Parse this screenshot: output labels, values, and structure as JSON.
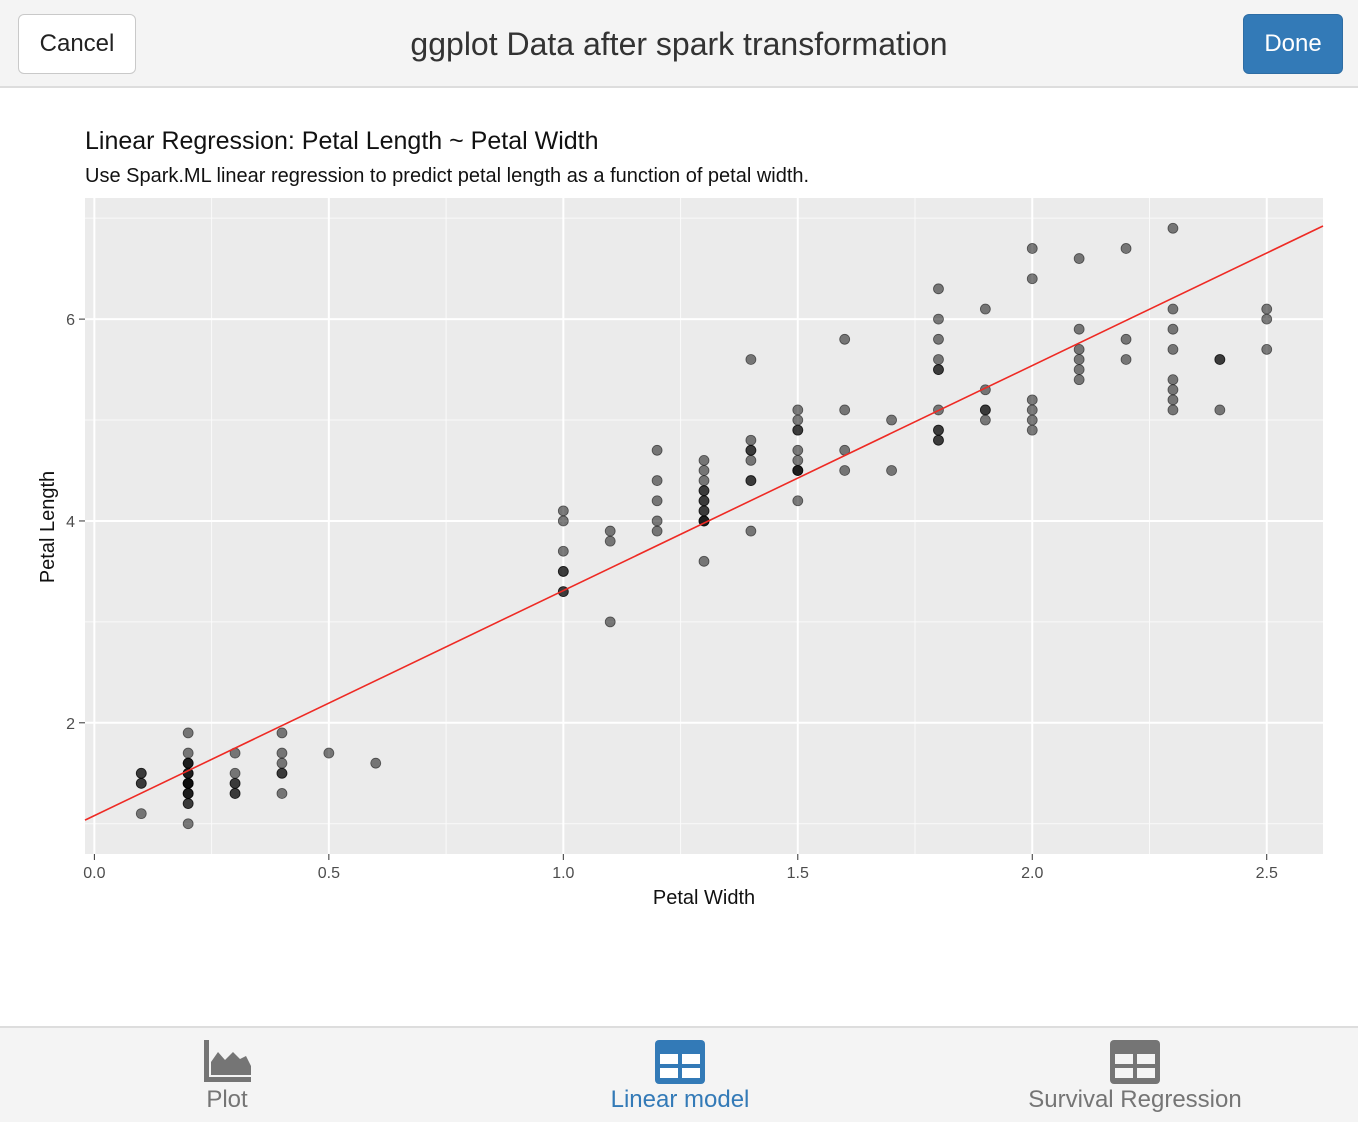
{
  "header": {
    "title": "ggplot Data after spark transformation",
    "cancel_label": "Cancel",
    "done_label": "Done"
  },
  "tabs": [
    {
      "label": "Plot",
      "icon": "area-chart-icon",
      "active": false
    },
    {
      "label": "Linear model",
      "icon": "table-icon",
      "active": true
    },
    {
      "label": "Survival Regression",
      "icon": "table-icon",
      "active": false
    }
  ],
  "colors": {
    "accent": "#337ab7",
    "panel_background": "#ebebeb",
    "grid": "#ffffff",
    "point": "#000000",
    "fit_line": "#ee2a24",
    "inactive_tab": "#757575"
  },
  "chart_data": {
    "type": "scatter",
    "title": "Linear Regression: Petal Length ~ Petal Width",
    "subtitle": "Use Spark.ML linear regression to predict petal length as a function of petal width.",
    "xlabel": "Petal Width",
    "ylabel": "Petal Length",
    "xlim": [
      -0.02,
      2.62
    ],
    "ylim": [
      0.7,
      7.2
    ],
    "x_ticks": [
      0.0,
      0.5,
      1.0,
      1.5,
      2.0,
      2.5
    ],
    "x_tick_labels": [
      "0.0",
      "0.5",
      "1.0",
      "1.5",
      "2.0",
      "2.5"
    ],
    "y_ticks": [
      2,
      4,
      6
    ],
    "y_tick_labels": [
      "2",
      "4",
      "6"
    ],
    "grid": true,
    "point_alpha": 0.5,
    "fit_line": {
      "intercept": 1.08,
      "slope": 2.23
    },
    "points": [
      [
        0.1,
        1.1
      ],
      [
        0.1,
        1.4
      ],
      [
        0.1,
        1.4
      ],
      [
        0.1,
        1.5
      ],
      [
        0.1,
        1.5
      ],
      [
        0.2,
        1.0
      ],
      [
        0.2,
        1.2
      ],
      [
        0.2,
        1.2
      ],
      [
        0.2,
        1.3
      ],
      [
        0.2,
        1.3
      ],
      [
        0.2,
        1.3
      ],
      [
        0.2,
        1.4
      ],
      [
        0.2,
        1.4
      ],
      [
        0.2,
        1.4
      ],
      [
        0.2,
        1.4
      ],
      [
        0.2,
        1.5
      ],
      [
        0.2,
        1.5
      ],
      [
        0.2,
        1.5
      ],
      [
        0.2,
        1.6
      ],
      [
        0.2,
        1.6
      ],
      [
        0.2,
        1.6
      ],
      [
        0.2,
        1.7
      ],
      [
        0.2,
        1.9
      ],
      [
        0.3,
        1.3
      ],
      [
        0.3,
        1.3
      ],
      [
        0.3,
        1.4
      ],
      [
        0.3,
        1.4
      ],
      [
        0.3,
        1.5
      ],
      [
        0.3,
        1.7
      ],
      [
        0.4,
        1.3
      ],
      [
        0.4,
        1.5
      ],
      [
        0.4,
        1.5
      ],
      [
        0.4,
        1.6
      ],
      [
        0.4,
        1.7
      ],
      [
        0.4,
        1.9
      ],
      [
        0.5,
        1.7
      ],
      [
        0.6,
        1.6
      ],
      [
        1.0,
        3.3
      ],
      [
        1.0,
        3.3
      ],
      [
        1.0,
        3.5
      ],
      [
        1.0,
        3.5
      ],
      [
        1.0,
        3.7
      ],
      [
        1.0,
        4.0
      ],
      [
        1.0,
        4.1
      ],
      [
        1.1,
        3.0
      ],
      [
        1.1,
        3.8
      ],
      [
        1.1,
        3.9
      ],
      [
        1.2,
        3.9
      ],
      [
        1.2,
        4.0
      ],
      [
        1.2,
        4.2
      ],
      [
        1.2,
        4.4
      ],
      [
        1.2,
        4.7
      ],
      [
        1.3,
        3.6
      ],
      [
        1.3,
        4.0
      ],
      [
        1.3,
        4.0
      ],
      [
        1.3,
        4.0
      ],
      [
        1.3,
        4.1
      ],
      [
        1.3,
        4.1
      ],
      [
        1.3,
        4.2
      ],
      [
        1.3,
        4.2
      ],
      [
        1.3,
        4.3
      ],
      [
        1.3,
        4.3
      ],
      [
        1.3,
        4.4
      ],
      [
        1.3,
        4.5
      ],
      [
        1.3,
        4.6
      ],
      [
        1.4,
        3.9
      ],
      [
        1.4,
        4.4
      ],
      [
        1.4,
        4.4
      ],
      [
        1.4,
        4.6
      ],
      [
        1.4,
        4.7
      ],
      [
        1.4,
        4.7
      ],
      [
        1.4,
        4.8
      ],
      [
        1.4,
        5.6
      ],
      [
        1.5,
        4.2
      ],
      [
        1.5,
        4.5
      ],
      [
        1.5,
        4.5
      ],
      [
        1.5,
        4.5
      ],
      [
        1.5,
        4.6
      ],
      [
        1.5,
        4.7
      ],
      [
        1.5,
        4.9
      ],
      [
        1.5,
        4.9
      ],
      [
        1.5,
        5.0
      ],
      [
        1.5,
        5.1
      ],
      [
        1.6,
        4.5
      ],
      [
        1.6,
        4.7
      ],
      [
        1.6,
        5.1
      ],
      [
        1.6,
        5.8
      ],
      [
        1.7,
        4.5
      ],
      [
        1.7,
        5.0
      ],
      [
        1.8,
        4.8
      ],
      [
        1.8,
        4.8
      ],
      [
        1.8,
        4.9
      ],
      [
        1.8,
        4.9
      ],
      [
        1.8,
        5.1
      ],
      [
        1.8,
        5.5
      ],
      [
        1.8,
        5.5
      ],
      [
        1.8,
        5.6
      ],
      [
        1.8,
        5.8
      ],
      [
        1.8,
        6.0
      ],
      [
        1.8,
        6.3
      ],
      [
        1.9,
        5.0
      ],
      [
        1.9,
        5.1
      ],
      [
        1.9,
        5.1
      ],
      [
        1.9,
        5.3
      ],
      [
        1.9,
        6.1
      ],
      [
        2.0,
        4.9
      ],
      [
        2.0,
        5.0
      ],
      [
        2.0,
        5.1
      ],
      [
        2.0,
        5.2
      ],
      [
        2.0,
        6.4
      ],
      [
        2.0,
        6.7
      ],
      [
        2.1,
        5.4
      ],
      [
        2.1,
        5.5
      ],
      [
        2.1,
        5.6
      ],
      [
        2.1,
        5.7
      ],
      [
        2.1,
        5.9
      ],
      [
        2.1,
        6.6
      ],
      [
        2.2,
        5.6
      ],
      [
        2.2,
        5.8
      ],
      [
        2.2,
        6.7
      ],
      [
        2.3,
        5.1
      ],
      [
        2.3,
        5.2
      ],
      [
        2.3,
        5.3
      ],
      [
        2.3,
        5.4
      ],
      [
        2.3,
        5.7
      ],
      [
        2.3,
        5.9
      ],
      [
        2.3,
        6.1
      ],
      [
        2.3,
        6.9
      ],
      [
        2.4,
        5.1
      ],
      [
        2.4,
        5.6
      ],
      [
        2.4,
        5.6
      ],
      [
        2.5,
        5.7
      ],
      [
        2.5,
        6.0
      ],
      [
        2.5,
        6.1
      ]
    ]
  }
}
